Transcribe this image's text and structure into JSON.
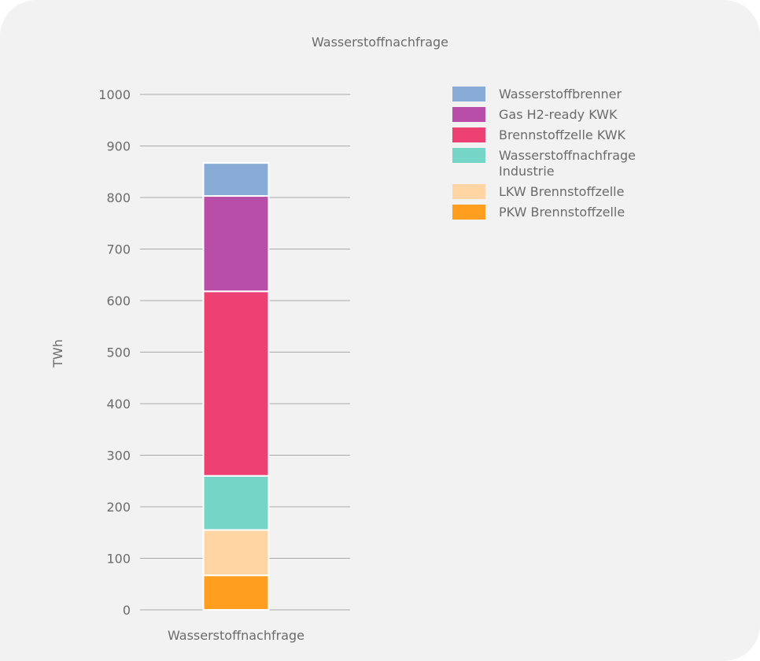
{
  "chart_data": {
    "type": "bar",
    "stacked": true,
    "title": "Wasserstoffnachfrage",
    "xlabel": "",
    "ylabel": "TWh",
    "ylim": [
      0,
      1000
    ],
    "yticks": [
      0,
      100,
      200,
      300,
      400,
      500,
      600,
      700,
      800,
      900,
      1000
    ],
    "categories": [
      "Wasserstoffnachfrage"
    ],
    "grid": true,
    "legend_position": "top-right",
    "series": [
      {
        "name": "PKW Brennstoffzelle",
        "values": [
          67
        ],
        "color": "#ff9e1f"
      },
      {
        "name": "LKW Brennstoffzelle",
        "values": [
          88
        ],
        "color": "#ffd6a3"
      },
      {
        "name": "Wasserstoffnachfrage Industrie",
        "values": [
          105
        ],
        "color": "#75d5c6"
      },
      {
        "name": "Brennstoffzelle KWK",
        "values": [
          358
        ],
        "color": "#ec4172"
      },
      {
        "name": "Gas H2-ready KWK",
        "values": [
          185
        ],
        "color": "#b94ea8"
      },
      {
        "name": "Wasserstoffbrenner",
        "values": [
          64
        ],
        "color": "#88acd6"
      }
    ],
    "legend_order": [
      "Wasserstoffbrenner",
      "Gas H2-ready KWK",
      "Brennstoffzelle KWK",
      "Wasserstoffnachfrage Industrie",
      "LKW Brennstoffzelle",
      "PKW Brennstoffzelle"
    ]
  }
}
